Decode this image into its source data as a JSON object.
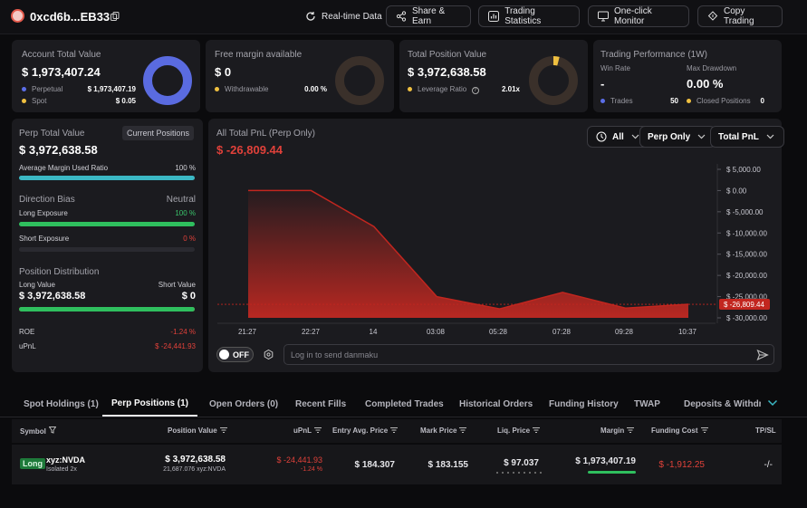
{
  "header": {
    "address": "0xcd6b...EB33",
    "realtime_label": "Real-time Data",
    "share_label": "Share & Earn",
    "stats_label": "Trading Statistics",
    "monitor_label": "One-click Monitor",
    "copy_label": "Copy Trading"
  },
  "account": {
    "title": "Account Total Value",
    "value": "$ 1,973,407.24",
    "perp_label": "Perpetual",
    "perp_value": "$ 1,973,407.19",
    "spot_label": "Spot",
    "spot_value": "$ 0.05"
  },
  "margin": {
    "title": "Free margin available",
    "value": "$ 0",
    "withdrawable_label": "Withdrawable",
    "withdrawable_value": "0.00 %"
  },
  "position": {
    "title": "Total Position Value",
    "value": "$ 3,972,638.58",
    "leverage_label": "Leverage Ratio",
    "leverage_value": "2.01x"
  },
  "performance": {
    "title": "Trading Performance (1W)",
    "win_rate_label": "Win Rate",
    "win_rate_value": "-",
    "drawdown_label": "Max Drawdown",
    "drawdown_value": "0.00 %",
    "trades_label": "Trades",
    "trades_value": "50",
    "closed_label": "Closed Positions",
    "closed_value": "0"
  },
  "perp_panel": {
    "title": "Perp Total Value",
    "badge": "Current Positions",
    "value": "$ 3,972,638.58",
    "avg_margin_label": "Average Margin Used Ratio",
    "avg_margin_value": "100 %",
    "avg_margin_fraction": 1.0,
    "bias_label": "Direction Bias",
    "bias_value": "Neutral",
    "long_exposure_label": "Long Exposure",
    "long_exposure_value": "100 %",
    "long_exposure_fraction": 1.0,
    "short_exposure_label": "Short Exposure",
    "short_exposure_value": "0 %",
    "short_exposure_fraction": 0.0,
    "distribution_label": "Position Distribution",
    "long_value_label": "Long Value",
    "short_value_label": "Short Value",
    "long_value": "$ 3,972,638.58",
    "short_value": "$ 0",
    "long_fraction": 1.0,
    "roe_label": "ROE",
    "roe_value": "-1.24 %",
    "upnl_label": "uPnL",
    "upnl_value": "$ -24,441.93"
  },
  "pnl": {
    "title": "All Total PnL (Perp Only)",
    "value": "$ -26,809.44",
    "filter_all": "All",
    "filter_perp": "Perp Only",
    "filter_total": "Total PnL",
    "toggle_label": "OFF",
    "danmaku_placeholder": "Log in to send danmaku"
  },
  "chart_data": {
    "type": "area",
    "x": [
      "21:27",
      "22:27",
      "14",
      "03:08",
      "05:28",
      "07:28",
      "09:28",
      "10:37"
    ],
    "values": [
      0,
      0,
      -8500,
      -25000,
      -27900,
      -24000,
      -27700,
      -26809.44
    ],
    "y_ticks": [
      "$ 5,000.00",
      "$ 0.00",
      "$ -5,000.00",
      "$ -10,000.00",
      "$ -15,000.00",
      "$ -20,000.00",
      "$ -25,000.00",
      "$ -30,000.00"
    ],
    "ylim": [
      -30000,
      5000
    ],
    "current_label": "$ -26,809.44",
    "colors": {
      "line": "#c2261f",
      "fill": "#d42a22"
    }
  },
  "tabs": [
    "Spot Holdings (1)",
    "Perp Positions (1)",
    "Open Orders (0)",
    "Recent Fills",
    "Completed Trades",
    "Historical Orders",
    "Funding History",
    "TWAP",
    "Deposits & Withdraw"
  ],
  "table": {
    "headers": [
      "Symbol",
      "Position Value",
      "uPnL",
      "Entry Avg. Price",
      "Mark Price",
      "Liq. Price",
      "Margin",
      "Funding Cost",
      "TP/SL"
    ],
    "row": {
      "side": "Long",
      "symbol": "xyz:NVDA",
      "margin_type": "Isolated 2x",
      "position_value": "$ 3,972,638.58",
      "position_size": "21,687.076 xyz:NVDA",
      "upnl": "$ -24,441.93",
      "upnl_pct": "-1.24 %",
      "entry_price": "$ 184.307",
      "mark_price": "$ 183.155",
      "liq_price": "$ 97.037",
      "margin": "$ 1,973,407.19",
      "funding_cost": "$ -1,912.25",
      "tpsl": "-/-"
    }
  }
}
